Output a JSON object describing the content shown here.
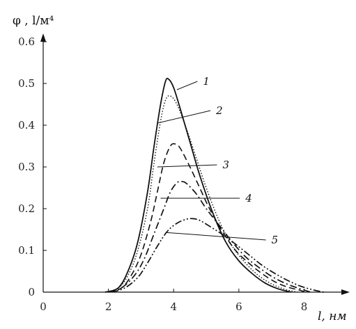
{
  "chart_data": {
    "type": "line",
    "ylabel": "φ , l/м⁴",
    "xlabel": "l, нм",
    "xlim": [
      0,
      9.4
    ],
    "ylim": [
      0,
      0.6
    ],
    "x_ticks": [
      0,
      2,
      4,
      6,
      8
    ],
    "y_ticks": [
      0,
      0.1,
      0.2,
      0.3,
      0.4,
      0.5,
      0.6
    ],
    "x_tick_labels": [
      "0",
      "2",
      "4",
      "6",
      "8"
    ],
    "y_tick_labels": [
      "0",
      "0.1",
      "0.2",
      "0.3",
      "0.4",
      "0.5",
      "0.6"
    ],
    "grid": false,
    "series": [
      {
        "name": "1",
        "style": "solid",
        "points": [
          [
            1.9,
            0
          ],
          [
            2.3,
            0.01
          ],
          [
            2.6,
            0.05
          ],
          [
            2.9,
            0.12
          ],
          [
            3.2,
            0.24
          ],
          [
            3.4,
            0.35
          ],
          [
            3.6,
            0.45
          ],
          [
            3.75,
            0.505
          ],
          [
            3.85,
            0.51
          ],
          [
            4.0,
            0.49
          ],
          [
            4.2,
            0.44
          ],
          [
            4.5,
            0.36
          ],
          [
            4.8,
            0.28
          ],
          [
            5.2,
            0.19
          ],
          [
            5.6,
            0.12
          ],
          [
            6.0,
            0.075
          ],
          [
            6.4,
            0.045
          ],
          [
            6.8,
            0.022
          ],
          [
            7.2,
            0.008
          ],
          [
            7.6,
            0
          ]
        ]
      },
      {
        "name": "2",
        "style": "dotted",
        "points": [
          [
            1.9,
            0
          ],
          [
            2.3,
            0.01
          ],
          [
            2.6,
            0.04
          ],
          [
            2.9,
            0.1
          ],
          [
            3.2,
            0.2
          ],
          [
            3.4,
            0.31
          ],
          [
            3.6,
            0.41
          ],
          [
            3.75,
            0.46
          ],
          [
            3.9,
            0.47
          ],
          [
            4.1,
            0.45
          ],
          [
            4.4,
            0.39
          ],
          [
            4.7,
            0.32
          ],
          [
            5.0,
            0.25
          ],
          [
            5.4,
            0.17
          ],
          [
            5.8,
            0.11
          ],
          [
            6.2,
            0.07
          ],
          [
            6.6,
            0.04
          ],
          [
            7.0,
            0.02
          ],
          [
            7.4,
            0.007
          ],
          [
            7.8,
            0
          ]
        ]
      },
      {
        "name": "3",
        "style": "dashed",
        "points": [
          [
            2.0,
            0
          ],
          [
            2.4,
            0.01
          ],
          [
            2.7,
            0.04
          ],
          [
            3.0,
            0.09
          ],
          [
            3.3,
            0.17
          ],
          [
            3.5,
            0.24
          ],
          [
            3.7,
            0.31
          ],
          [
            3.9,
            0.35
          ],
          [
            4.05,
            0.355
          ],
          [
            4.2,
            0.345
          ],
          [
            4.5,
            0.3
          ],
          [
            4.8,
            0.25
          ],
          [
            5.1,
            0.2
          ],
          [
            5.5,
            0.145
          ],
          [
            5.9,
            0.1
          ],
          [
            6.3,
            0.07
          ],
          [
            6.7,
            0.045
          ],
          [
            7.1,
            0.025
          ],
          [
            7.5,
            0.012
          ],
          [
            7.9,
            0.004
          ],
          [
            8.0,
            0
          ]
        ]
      },
      {
        "name": "4",
        "style": "dashdot",
        "points": [
          [
            2.0,
            0
          ],
          [
            2.4,
            0.01
          ],
          [
            2.8,
            0.04
          ],
          [
            3.1,
            0.08
          ],
          [
            3.4,
            0.14
          ],
          [
            3.7,
            0.2
          ],
          [
            3.9,
            0.24
          ],
          [
            4.1,
            0.262
          ],
          [
            4.25,
            0.265
          ],
          [
            4.4,
            0.26
          ],
          [
            4.7,
            0.235
          ],
          [
            5.0,
            0.2
          ],
          [
            5.4,
            0.16
          ],
          [
            5.8,
            0.12
          ],
          [
            6.2,
            0.085
          ],
          [
            6.6,
            0.06
          ],
          [
            7.0,
            0.038
          ],
          [
            7.4,
            0.022
          ],
          [
            7.8,
            0.01
          ],
          [
            8.2,
            0
          ]
        ]
      },
      {
        "name": "5",
        "style": "dashdotdot",
        "points": [
          [
            2.1,
            0
          ],
          [
            2.5,
            0.01
          ],
          [
            2.9,
            0.035
          ],
          [
            3.2,
            0.07
          ],
          [
            3.5,
            0.11
          ],
          [
            3.8,
            0.145
          ],
          [
            4.1,
            0.165
          ],
          [
            4.4,
            0.175
          ],
          [
            4.6,
            0.176
          ],
          [
            4.8,
            0.172
          ],
          [
            5.1,
            0.158
          ],
          [
            5.5,
            0.138
          ],
          [
            5.9,
            0.115
          ],
          [
            6.3,
            0.09
          ],
          [
            6.7,
            0.065
          ],
          [
            7.1,
            0.045
          ],
          [
            7.5,
            0.028
          ],
          [
            7.9,
            0.014
          ],
          [
            8.3,
            0.005
          ],
          [
            8.6,
            0
          ]
        ]
      }
    ],
    "annotations": [
      {
        "label": "1",
        "series": "1",
        "from": [
          4.9,
          0.505
        ],
        "to": [
          4.1,
          0.485
        ]
      },
      {
        "label": "2",
        "series": "2",
        "from": [
          5.3,
          0.435
        ],
        "to": [
          3.5,
          0.405
        ]
      },
      {
        "label": "3",
        "series": "3",
        "from": [
          5.5,
          0.305
        ],
        "to": [
          3.5,
          0.3
        ]
      },
      {
        "label": "4",
        "series": "4",
        "from": [
          6.2,
          0.225
        ],
        "to": [
          3.6,
          0.225
        ]
      },
      {
        "label": "5",
        "series": "5",
        "from": [
          7.0,
          0.125
        ],
        "to": [
          3.75,
          0.143
        ]
      }
    ]
  }
}
